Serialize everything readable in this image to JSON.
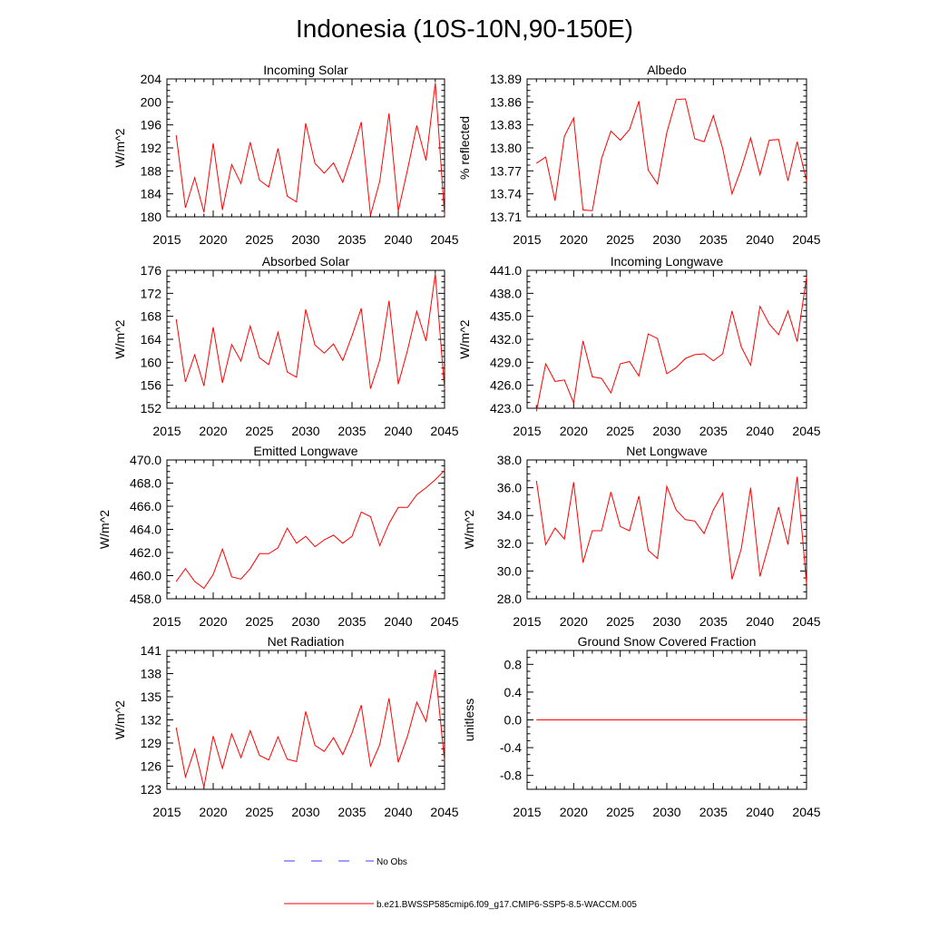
{
  "figure": {
    "title": "Indonesia (10S-10N,90-150E)",
    "series_color": "#ff0000",
    "obs_color": "#3b3bff"
  },
  "legend": {
    "obs_label": "No Obs",
    "model_label": "b.e21.BWSSP585cmip6.f09_g17.CMIP6-SSP5-8.5-WACCM.005"
  },
  "chart_data": [
    {
      "type": "line",
      "title": "Incoming Solar",
      "ylabel": "W/m^2",
      "xlim": [
        2015,
        2045
      ],
      "ylim": [
        180,
        204
      ],
      "xticks": [
        "2015",
        "2020",
        "2025",
        "2030",
        "2035",
        "2040",
        "2045"
      ],
      "yticks": [
        "180",
        "184",
        "188",
        "192",
        "196",
        "200",
        "204"
      ],
      "x": [
        2016,
        2017,
        2018,
        2019,
        2020,
        2021,
        2022,
        2023,
        2024,
        2025,
        2026,
        2027,
        2028,
        2029,
        2030,
        2031,
        2032,
        2033,
        2034,
        2035,
        2036,
        2037,
        2038,
        2039,
        2040,
        2041,
        2042,
        2043,
        2044,
        2045
      ],
      "values": [
        194.2,
        181.6,
        186.8,
        180.8,
        192.8,
        181.2,
        189.1,
        185.8,
        193.0,
        186.4,
        185.2,
        191.9,
        183.6,
        182.6,
        196.3,
        189.3,
        187.6,
        189.4,
        186.0,
        191.0,
        196.5,
        180.3,
        186.2,
        198.0,
        181.0,
        188.2,
        195.9,
        189.8,
        203.3,
        180.3
      ]
    },
    {
      "type": "line",
      "title": "Albedo",
      "ylabel": "% reflected",
      "xlim": [
        2015,
        2045
      ],
      "ylim": [
        13.71,
        13.89
      ],
      "xticks": [
        "2015",
        "2020",
        "2025",
        "2030",
        "2035",
        "2040",
        "2045"
      ],
      "yticks": [
        "13.71",
        "13.74",
        "13.77",
        "13.80",
        "13.83",
        "13.86",
        "13.89"
      ],
      "x": [
        2016,
        2017,
        2018,
        2019,
        2020,
        2021,
        2022,
        2023,
        2024,
        2025,
        2026,
        2027,
        2028,
        2029,
        2030,
        2031,
        2032,
        2033,
        2034,
        2035,
        2036,
        2037,
        2038,
        2039,
        2040,
        2041,
        2042,
        2043,
        2044,
        2045
      ],
      "values": [
        13.78,
        13.788,
        13.731,
        13.815,
        13.839,
        13.719,
        13.718,
        13.786,
        13.822,
        13.81,
        13.824,
        13.861,
        13.771,
        13.753,
        13.82,
        13.863,
        13.864,
        13.812,
        13.808,
        13.842,
        13.799,
        13.74,
        13.773,
        13.813,
        13.765,
        13.81,
        13.811,
        13.757,
        13.808,
        13.757
      ]
    },
    {
      "type": "line",
      "title": "Absorbed Solar",
      "ylabel": "W/m^2",
      "xlim": [
        2015,
        2045
      ],
      "ylim": [
        152,
        176
      ],
      "xticks": [
        "2015",
        "2020",
        "2025",
        "2030",
        "2035",
        "2040",
        "2045"
      ],
      "yticks": [
        "152",
        "156",
        "160",
        "164",
        "168",
        "172",
        "176"
      ],
      "x": [
        2016,
        2017,
        2018,
        2019,
        2020,
        2021,
        2022,
        2023,
        2024,
        2025,
        2026,
        2027,
        2028,
        2029,
        2030,
        2031,
        2032,
        2033,
        2034,
        2035,
        2036,
        2037,
        2038,
        2039,
        2040,
        2041,
        2042,
        2043,
        2044,
        2045
      ],
      "values": [
        167.5,
        156.6,
        161.3,
        155.9,
        166.1,
        156.4,
        163.1,
        160.2,
        166.3,
        160.8,
        159.6,
        165.2,
        158.3,
        157.4,
        169.2,
        163.0,
        161.6,
        163.2,
        160.3,
        164.6,
        169.4,
        155.4,
        160.4,
        170.7,
        156.2,
        162.1,
        168.9,
        163.7,
        175.4,
        155.3
      ]
    },
    {
      "type": "line",
      "title": "Incoming Longwave",
      "ylabel": "W/m^2",
      "xlim": [
        2015,
        2045
      ],
      "ylim": [
        423.0,
        441.0
      ],
      "xticks": [
        "2015",
        "2020",
        "2025",
        "2030",
        "2035",
        "2040",
        "2045"
      ],
      "yticks": [
        "423.0",
        "426.0",
        "429.0",
        "432.0",
        "435.0",
        "438.0",
        "441.0"
      ],
      "x": [
        2016,
        2017,
        2018,
        2019,
        2020,
        2021,
        2022,
        2023,
        2024,
        2025,
        2026,
        2027,
        2028,
        2029,
        2030,
        2031,
        2032,
        2033,
        2034,
        2035,
        2036,
        2037,
        2038,
        2039,
        2040,
        2041,
        2042,
        2043,
        2044,
        2045
      ],
      "values": [
        422.6,
        428.8,
        426.5,
        426.7,
        423.7,
        431.8,
        427.1,
        426.9,
        425.0,
        428.8,
        429.1,
        427.2,
        432.7,
        432.1,
        427.5,
        428.3,
        429.5,
        430.0,
        430.1,
        429.2,
        430.1,
        435.7,
        431.0,
        428.6,
        436.3,
        434.0,
        432.6,
        435.7,
        431.7,
        440.1
      ]
    },
    {
      "type": "line",
      "title": "Emitted Longwave",
      "ylabel": "W/m^2",
      "xlim": [
        2015,
        2045
      ],
      "ylim": [
        458.0,
        470.0
      ],
      "xticks": [
        "2015",
        "2020",
        "2025",
        "2030",
        "2035",
        "2040",
        "2045"
      ],
      "yticks": [
        "458.0",
        "460.0",
        "462.0",
        "464.0",
        "466.0",
        "468.0",
        "470.0"
      ],
      "x": [
        2016,
        2017,
        2018,
        2019,
        2020,
        2021,
        2022,
        2023,
        2024,
        2025,
        2026,
        2027,
        2028,
        2029,
        2030,
        2031,
        2032,
        2033,
        2034,
        2035,
        2036,
        2037,
        2038,
        2039,
        2040,
        2041,
        2042,
        2043,
        2044,
        2045
      ],
      "values": [
        459.5,
        460.6,
        459.5,
        458.9,
        460.1,
        462.3,
        459.9,
        459.7,
        460.6,
        461.9,
        461.9,
        462.4,
        464.1,
        462.8,
        463.4,
        462.5,
        463.1,
        463.5,
        462.8,
        463.4,
        465.5,
        465.1,
        462.6,
        464.5,
        465.9,
        465.9,
        467.0,
        467.6,
        468.3,
        469.1
      ]
    },
    {
      "type": "line",
      "title": "Net Longwave",
      "ylabel": "W/m^2",
      "xlim": [
        2015,
        2045
      ],
      "ylim": [
        28.0,
        38.0
      ],
      "xticks": [
        "2015",
        "2020",
        "2025",
        "2030",
        "2035",
        "2040",
        "2045"
      ],
      "yticks": [
        "28.0",
        "30.0",
        "32.0",
        "34.0",
        "36.0",
        "38.0"
      ],
      "x": [
        2016,
        2017,
        2018,
        2019,
        2020,
        2021,
        2022,
        2023,
        2024,
        2025,
        2026,
        2027,
        2028,
        2029,
        2030,
        2031,
        2032,
        2033,
        2034,
        2035,
        2036,
        2037,
        2038,
        2039,
        2040,
        2041,
        2042,
        2043,
        2044,
        2045
      ],
      "values": [
        36.5,
        31.9,
        33.1,
        32.3,
        36.4,
        30.6,
        32.9,
        32.9,
        35.7,
        33.2,
        32.9,
        35.4,
        31.5,
        30.9,
        36.1,
        34.4,
        33.7,
        33.6,
        32.7,
        34.4,
        35.6,
        29.4,
        31.6,
        36.0,
        29.6,
        32.0,
        34.6,
        31.9,
        36.8,
        29.1
      ]
    },
    {
      "type": "line",
      "title": "Net Radiation",
      "ylabel": "W/m^2",
      "xlim": [
        2015,
        2045
      ],
      "ylim": [
        123,
        141
      ],
      "xticks": [
        "2015",
        "2020",
        "2025",
        "2030",
        "2035",
        "2040",
        "2045"
      ],
      "yticks": [
        "123",
        "126",
        "129",
        "132",
        "135",
        "138",
        "141"
      ],
      "x": [
        2016,
        2017,
        2018,
        2019,
        2020,
        2021,
        2022,
        2023,
        2024,
        2025,
        2026,
        2027,
        2028,
        2029,
        2030,
        2031,
        2032,
        2033,
        2034,
        2035,
        2036,
        2037,
        2038,
        2039,
        2040,
        2041,
        2042,
        2043,
        2044,
        2045
      ],
      "values": [
        131.0,
        124.6,
        128.2,
        123.3,
        129.9,
        125.7,
        130.2,
        127.1,
        130.6,
        127.4,
        126.8,
        129.8,
        126.9,
        126.6,
        133.1,
        128.7,
        127.9,
        129.7,
        127.5,
        130.3,
        133.9,
        126.0,
        128.8,
        134.8,
        126.5,
        129.9,
        134.3,
        131.8,
        138.5,
        126.7
      ]
    },
    {
      "type": "line",
      "title": "Ground Snow Covered Fraction",
      "ylabel": "unitless",
      "xlim": [
        2015,
        2045
      ],
      "ylim": [
        -1.0,
        1.0
      ],
      "xticks": [
        "2015",
        "2020",
        "2025",
        "2030",
        "2035",
        "2040",
        "2045"
      ],
      "yticks": [
        "-0.8",
        "-0.4",
        "0.0",
        "0.4",
        "0.8"
      ],
      "x": [
        2016,
        2017,
        2018,
        2019,
        2020,
        2021,
        2022,
        2023,
        2024,
        2025,
        2026,
        2027,
        2028,
        2029,
        2030,
        2031,
        2032,
        2033,
        2034,
        2035,
        2036,
        2037,
        2038,
        2039,
        2040,
        2041,
        2042,
        2043,
        2044,
        2045
      ],
      "values": [
        0,
        0,
        0,
        0,
        0,
        0,
        0,
        0,
        0,
        0,
        0,
        0,
        0,
        0,
        0,
        0,
        0,
        0,
        0,
        0,
        0,
        0,
        0,
        0,
        0,
        0,
        0,
        0,
        0,
        0
      ]
    }
  ]
}
